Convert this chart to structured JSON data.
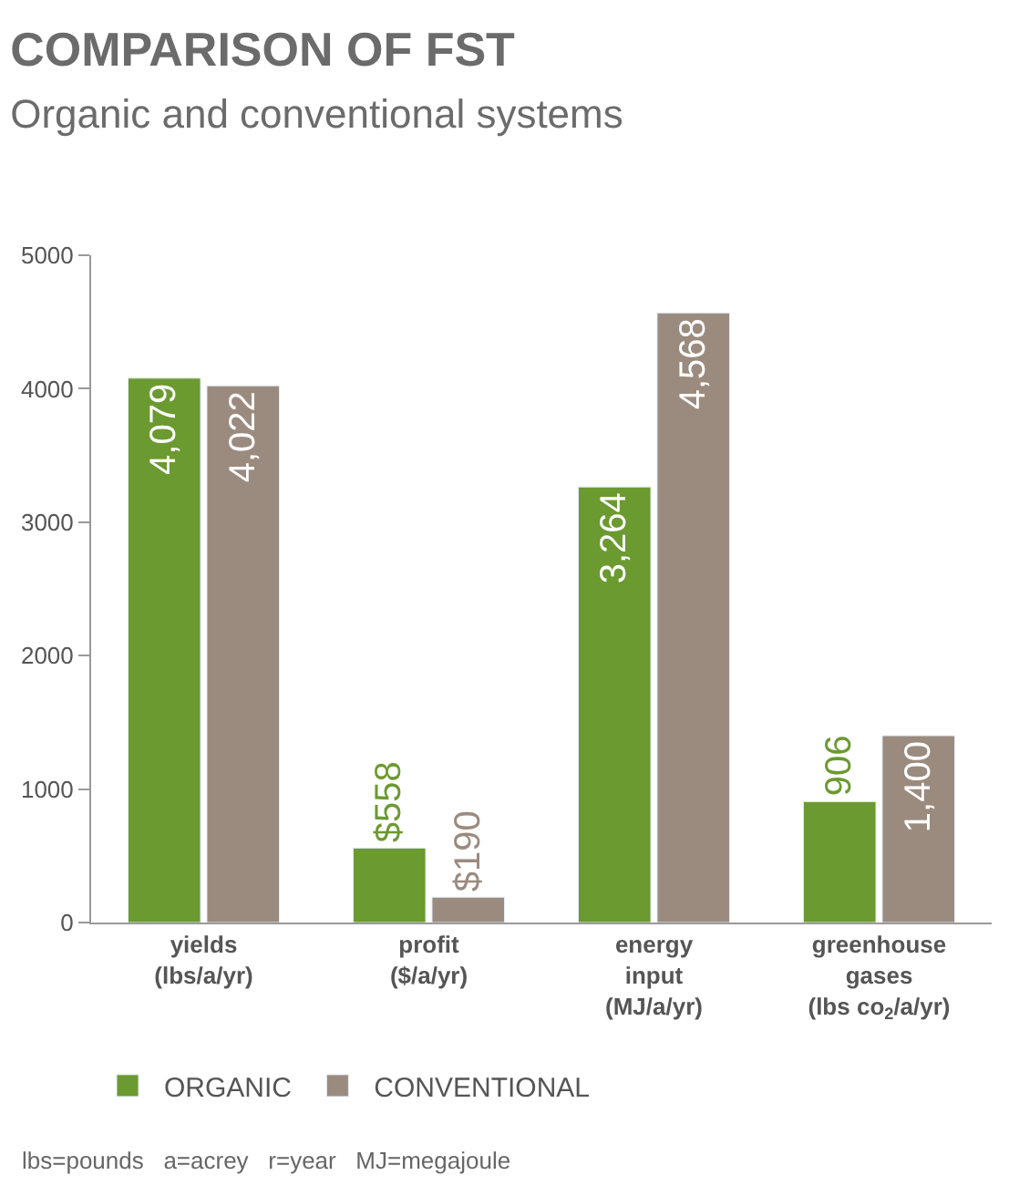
{
  "chart_data": {
    "type": "bar",
    "title": "COMPARISON OF FST",
    "subtitle": "Organic and conventional systems",
    "categories": [
      "yields\n(lbs/a/yr)",
      "profit\n($/a/yr)",
      "energy\ninput\n(MJ/a/yr)",
      "greenhouse\ngases\n(lbs co$_{2}$/a/yr)"
    ],
    "series": [
      {
        "name": "ORGANIC",
        "color": "#6b9a30",
        "values": [
          4079,
          558,
          3264,
          906
        ],
        "value_labels": [
          "4,079",
          "$558",
          "3,264",
          "906"
        ]
      },
      {
        "name": "CONVENTIONAL",
        "color": "#9b8b7f",
        "values": [
          4022,
          190,
          4568,
          1400
        ],
        "value_labels": [
          "4,022",
          "$190",
          "4,568",
          "1,400"
        ]
      }
    ],
    "ylim": [
      0,
      5000
    ],
    "yticks": [
      0,
      1000,
      2000,
      3000,
      4000,
      5000
    ],
    "legend": "bottom left",
    "annotations": [
      "lbs=pounds   a=acrey   r=year   MJ=megajoule"
    ]
  }
}
